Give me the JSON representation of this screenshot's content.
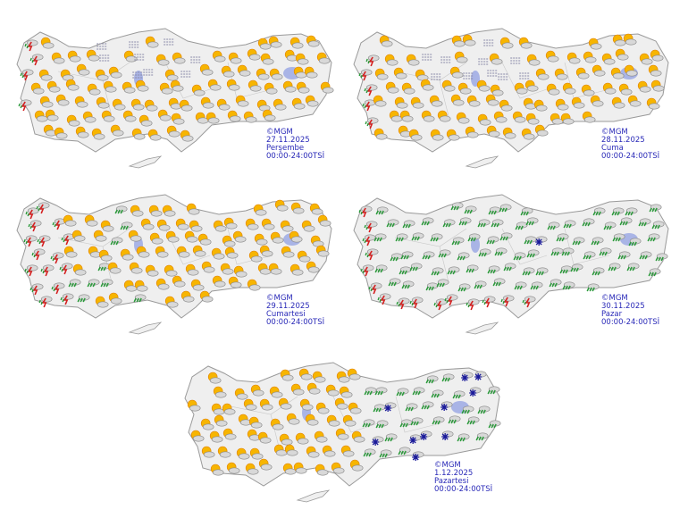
{
  "colors": {
    "land": "#efefef",
    "border": "#9a9a9a",
    "lake": "#a9b4e6",
    "label": "#2a2ab8",
    "sun": "#f7b500",
    "thunder": "#d42020",
    "rain": "#2a9a3a",
    "snow": "#1a1a9a"
  },
  "panels": [
    {
      "copyright": "©MGM",
      "date": "27.11.2025",
      "day": "Perşembe",
      "time": "00:00-24:00TSİ",
      "icons": [
        "partly-cloudy-icon",
        "thunderstorm-icon",
        "fog-icon"
      ]
    },
    {
      "copyright": "©MGM",
      "date": "28.11.2025",
      "day": "Cuma",
      "time": "00:00-24:00TSİ",
      "icons": [
        "partly-cloudy-icon",
        "thunderstorm-icon",
        "fog-icon"
      ]
    },
    {
      "copyright": "©MGM",
      "date": "29.11.2025",
      "day": "Cumartesi",
      "time": "00:00-24:00TSİ",
      "icons": [
        "partly-cloudy-icon",
        "thunderstorm-icon",
        "rain-icon"
      ]
    },
    {
      "copyright": "©MGM",
      "date": "30.11.2025",
      "day": "Pazar",
      "time": "00:00-24:00TSİ",
      "icons": [
        "rain-icon",
        "thunderstorm-icon",
        "snow-icon"
      ]
    },
    {
      "copyright": "©MGM",
      "date": "1.12.2025",
      "day": "Pazartesi",
      "time": "00:00-24:00TSİ",
      "icons": [
        "partly-cloudy-icon",
        "rain-icon",
        "snow-icon"
      ]
    }
  ]
}
